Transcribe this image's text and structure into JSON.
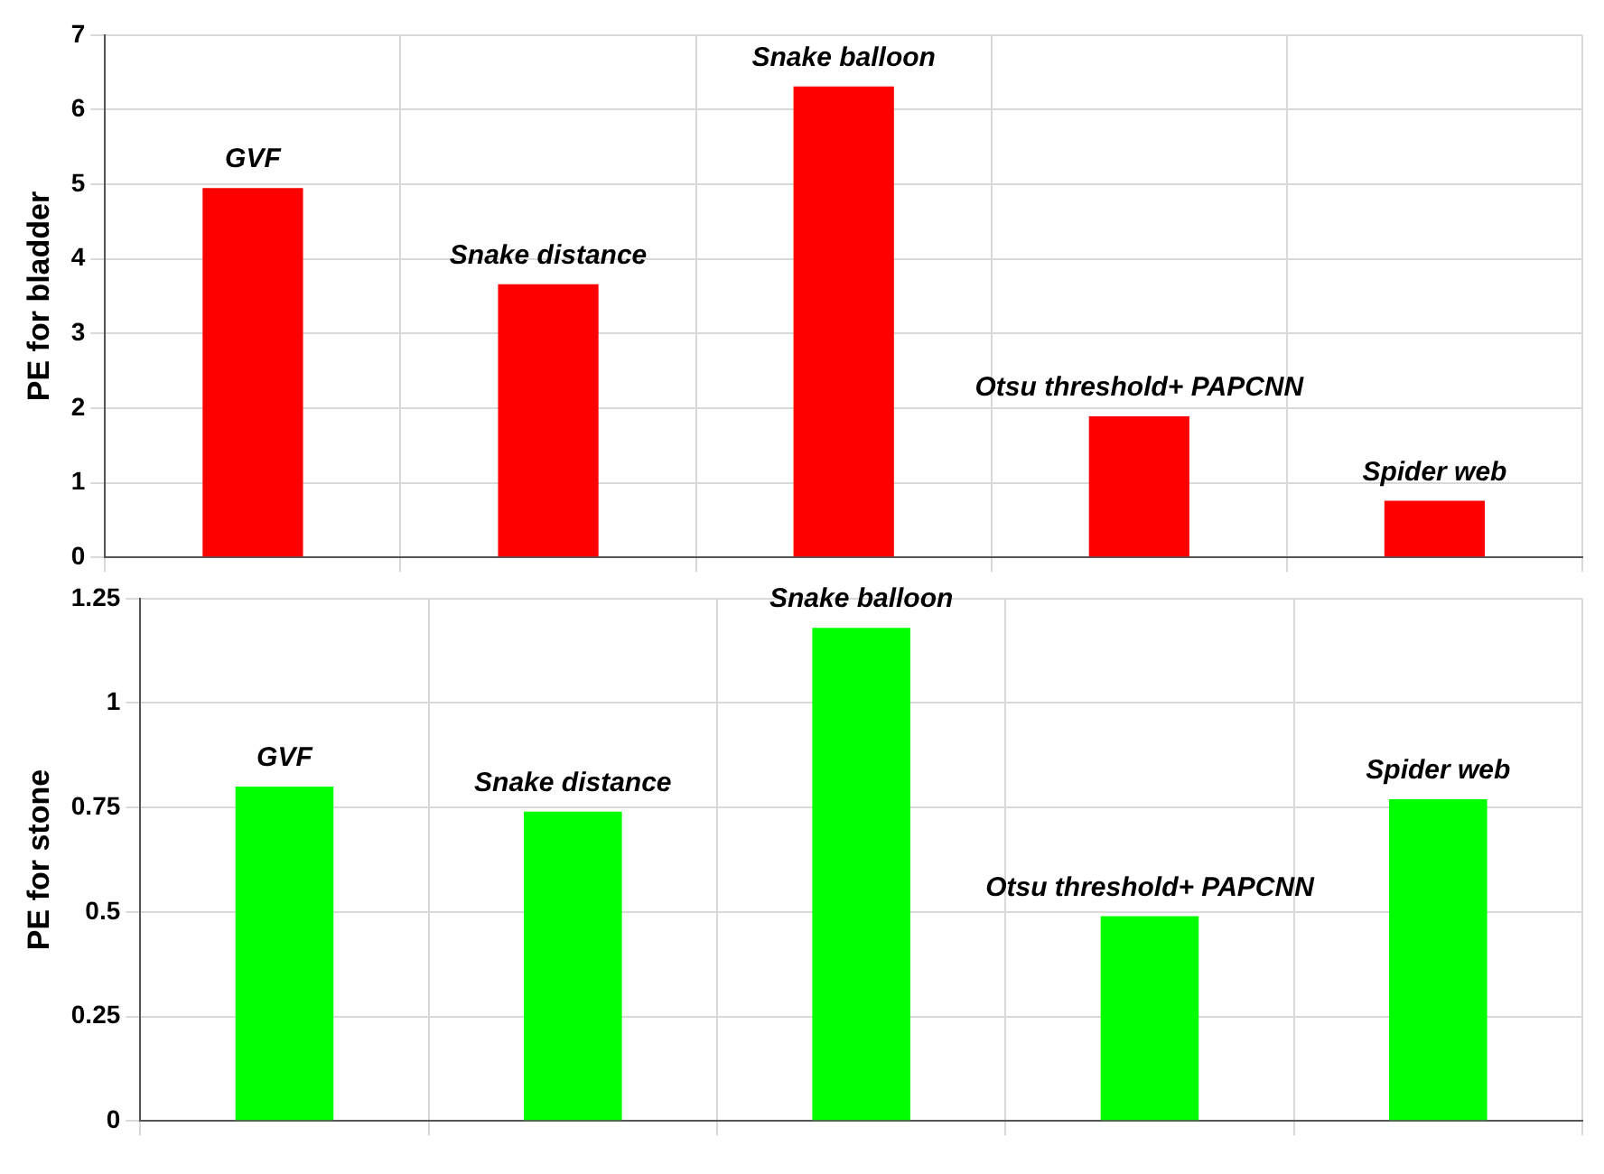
{
  "chart_data": [
    {
      "type": "bar",
      "ylabel": "PE for bladder",
      "categories": [
        "GVF",
        "Snake distance",
        "Snake balloon",
        "Otsu threshold+ PAPCNN",
        "Spider web"
      ],
      "series": [
        {
          "color": "#ff0000",
          "values": [
            4.95,
            3.66,
            6.31,
            1.89,
            0.76
          ]
        }
      ],
      "ylim": [
        0,
        7
      ],
      "yticks": [
        0,
        1,
        2,
        3,
        4,
        5,
        6,
        7
      ],
      "grid": true,
      "tick_labels": "y"
    },
    {
      "type": "bar",
      "ylabel": "PE for stone",
      "categories": [
        "GVF",
        "Snake distance",
        "Snake balloon",
        "Otsu threshold+ PAPCNN",
        "Spider web"
      ],
      "series": [
        {
          "color": "#00ff00",
          "values": [
            0.8,
            0.74,
            1.18,
            0.49,
            0.77
          ]
        }
      ],
      "ylim": [
        0,
        1.25
      ],
      "yticks": [
        0,
        0.25,
        0.5,
        0.75,
        1,
        1.25
      ],
      "grid": true,
      "tick_labels": "y"
    }
  ]
}
